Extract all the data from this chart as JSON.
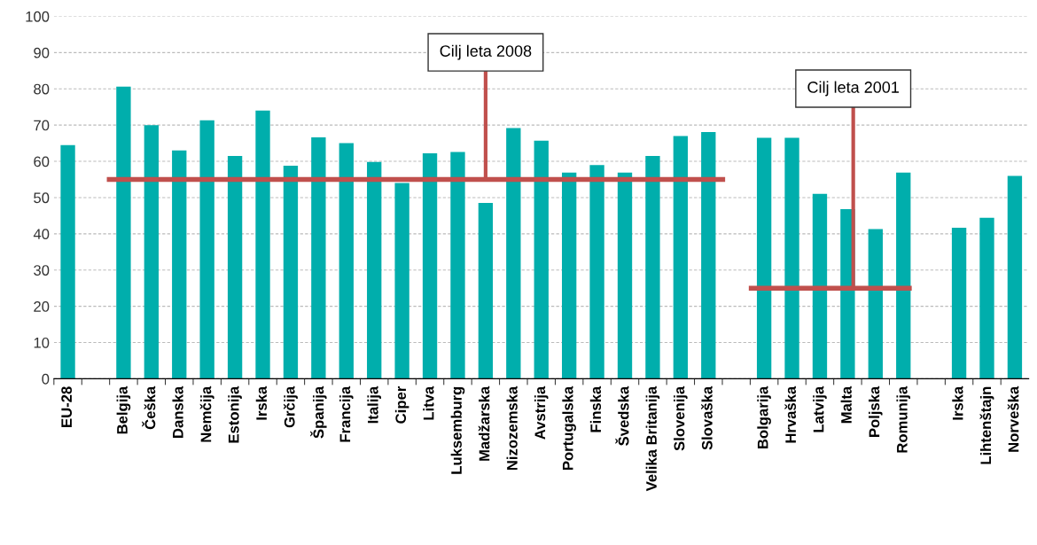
{
  "chart_data": {
    "type": "bar",
    "categories": [
      "EU-28",
      null,
      "Belgija",
      "Češka",
      "Danska",
      "Nemčija",
      "Estonija",
      "Irska",
      "Grčija",
      "Španija",
      "Francija",
      "Italija",
      "Ciper",
      "Litva",
      "Luksemburg",
      "Madžarska",
      "Nizozemska",
      "Avstrija",
      "Portugalska",
      "Finska",
      "Švedska",
      "Velika Britanija",
      "Slovenija",
      "Slovaška",
      null,
      "Bolgarija",
      "Hrvaška",
      "Latvija",
      "Malta",
      "Poljska",
      "Romunija",
      null,
      "Irska",
      "Lihtenštajn",
      "Norveška"
    ],
    "values": [
      64.5,
      null,
      80.6,
      70,
      63,
      71.3,
      61.5,
      74,
      58.8,
      66.6,
      65,
      59.8,
      54,
      62.2,
      62.6,
      48.5,
      69.2,
      65.7,
      56.9,
      59,
      56.9,
      61.5,
      67,
      68.1,
      null,
      66.5,
      66.5,
      51,
      46.8,
      41.3,
      56.9,
      null,
      41.7,
      44.4,
      56
    ],
    "color": "#00aeac",
    "ylim": [
      0,
      100
    ],
    "yticks": [
      0,
      10,
      20,
      30,
      40,
      50,
      60,
      70,
      80,
      90,
      100
    ],
    "grid": "y",
    "ref_lines": [
      {
        "axis": "y",
        "value": 55,
        "label": "Cilj leta 2008",
        "color": "#c0504d"
      },
      {
        "axis": "y",
        "value": 25,
        "label": "Cilj leta 2001",
        "color": "#c0504d"
      }
    ]
  }
}
